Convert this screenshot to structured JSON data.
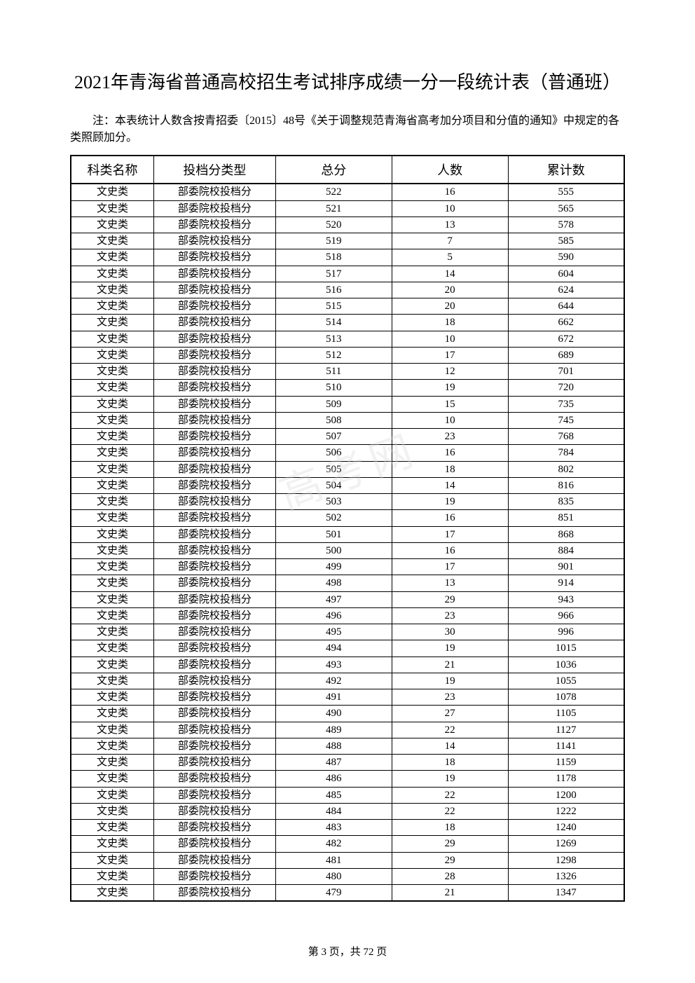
{
  "title": "2021年青海省普通高校招生考试排序成绩一分一段统计表（普通班）",
  "note": "注：本表统计人数含按青招委〔2015〕48号《关于调整规范青海省高考加分项目和分值的通知》中规定的各类照顾加分。",
  "watermark": "高考网",
  "footer": {
    "prefix": "第 ",
    "page": "3",
    "middle": " 页，共 ",
    "total": "72",
    "suffix": " 页"
  },
  "table": {
    "headers": [
      "科类名称",
      "投档分类型",
      "总分",
      "人数",
      "累计数"
    ],
    "column_widths": [
      "15%",
      "22%",
      "21%",
      "21%",
      "21%"
    ],
    "border_color": "#000000",
    "background_color": "#ffffff",
    "header_fontsize": 18,
    "cell_fontsize": 15,
    "rows": [
      [
        "文史类",
        "部委院校投档分",
        "522",
        "16",
        "555"
      ],
      [
        "文史类",
        "部委院校投档分",
        "521",
        "10",
        "565"
      ],
      [
        "文史类",
        "部委院校投档分",
        "520",
        "13",
        "578"
      ],
      [
        "文史类",
        "部委院校投档分",
        "519",
        "7",
        "585"
      ],
      [
        "文史类",
        "部委院校投档分",
        "518",
        "5",
        "590"
      ],
      [
        "文史类",
        "部委院校投档分",
        "517",
        "14",
        "604"
      ],
      [
        "文史类",
        "部委院校投档分",
        "516",
        "20",
        "624"
      ],
      [
        "文史类",
        "部委院校投档分",
        "515",
        "20",
        "644"
      ],
      [
        "文史类",
        "部委院校投档分",
        "514",
        "18",
        "662"
      ],
      [
        "文史类",
        "部委院校投档分",
        "513",
        "10",
        "672"
      ],
      [
        "文史类",
        "部委院校投档分",
        "512",
        "17",
        "689"
      ],
      [
        "文史类",
        "部委院校投档分",
        "511",
        "12",
        "701"
      ],
      [
        "文史类",
        "部委院校投档分",
        "510",
        "19",
        "720"
      ],
      [
        "文史类",
        "部委院校投档分",
        "509",
        "15",
        "735"
      ],
      [
        "文史类",
        "部委院校投档分",
        "508",
        "10",
        "745"
      ],
      [
        "文史类",
        "部委院校投档分",
        "507",
        "23",
        "768"
      ],
      [
        "文史类",
        "部委院校投档分",
        "506",
        "16",
        "784"
      ],
      [
        "文史类",
        "部委院校投档分",
        "505",
        "18",
        "802"
      ],
      [
        "文史类",
        "部委院校投档分",
        "504",
        "14",
        "816"
      ],
      [
        "文史类",
        "部委院校投档分",
        "503",
        "19",
        "835"
      ],
      [
        "文史类",
        "部委院校投档分",
        "502",
        "16",
        "851"
      ],
      [
        "文史类",
        "部委院校投档分",
        "501",
        "17",
        "868"
      ],
      [
        "文史类",
        "部委院校投档分",
        "500",
        "16",
        "884"
      ],
      [
        "文史类",
        "部委院校投档分",
        "499",
        "17",
        "901"
      ],
      [
        "文史类",
        "部委院校投档分",
        "498",
        "13",
        "914"
      ],
      [
        "文史类",
        "部委院校投档分",
        "497",
        "29",
        "943"
      ],
      [
        "文史类",
        "部委院校投档分",
        "496",
        "23",
        "966"
      ],
      [
        "文史类",
        "部委院校投档分",
        "495",
        "30",
        "996"
      ],
      [
        "文史类",
        "部委院校投档分",
        "494",
        "19",
        "1015"
      ],
      [
        "文史类",
        "部委院校投档分",
        "493",
        "21",
        "1036"
      ],
      [
        "文史类",
        "部委院校投档分",
        "492",
        "19",
        "1055"
      ],
      [
        "文史类",
        "部委院校投档分",
        "491",
        "23",
        "1078"
      ],
      [
        "文史类",
        "部委院校投档分",
        "490",
        "27",
        "1105"
      ],
      [
        "文史类",
        "部委院校投档分",
        "489",
        "22",
        "1127"
      ],
      [
        "文史类",
        "部委院校投档分",
        "488",
        "14",
        "1141"
      ],
      [
        "文史类",
        "部委院校投档分",
        "487",
        "18",
        "1159"
      ],
      [
        "文史类",
        "部委院校投档分",
        "486",
        "19",
        "1178"
      ],
      [
        "文史类",
        "部委院校投档分",
        "485",
        "22",
        "1200"
      ],
      [
        "文史类",
        "部委院校投档分",
        "484",
        "22",
        "1222"
      ],
      [
        "文史类",
        "部委院校投档分",
        "483",
        "18",
        "1240"
      ],
      [
        "文史类",
        "部委院校投档分",
        "482",
        "29",
        "1269"
      ],
      [
        "文史类",
        "部委院校投档分",
        "481",
        "29",
        "1298"
      ],
      [
        "文史类",
        "部委院校投档分",
        "480",
        "28",
        "1326"
      ],
      [
        "文史类",
        "部委院校投档分",
        "479",
        "21",
        "1347"
      ]
    ]
  }
}
